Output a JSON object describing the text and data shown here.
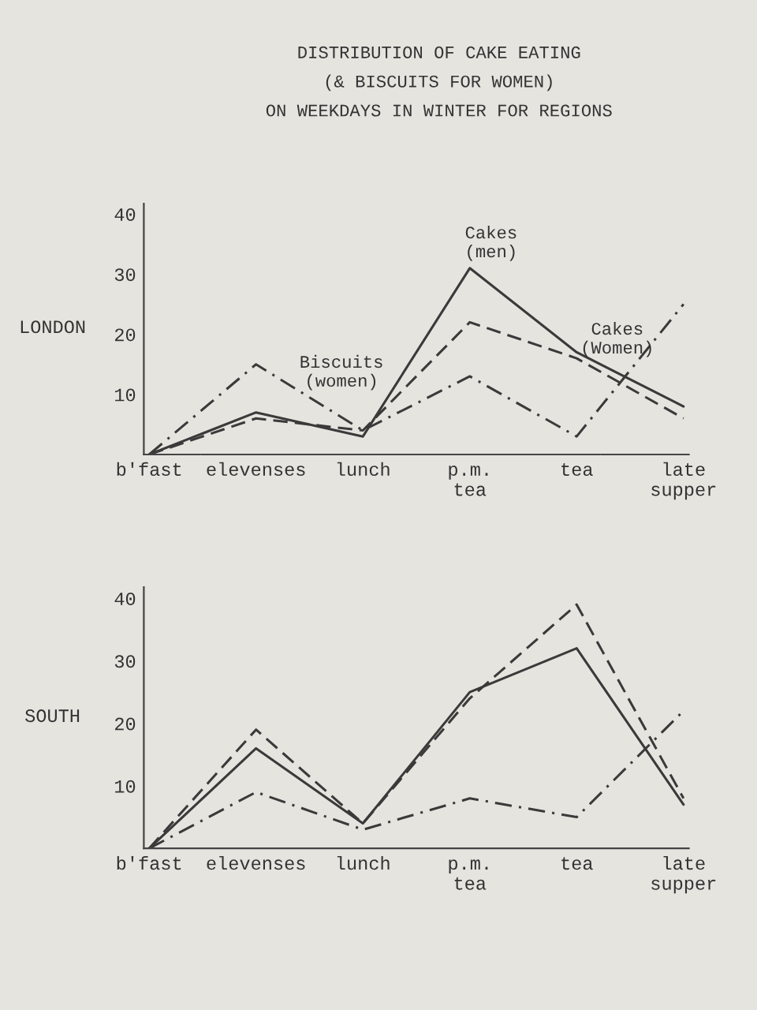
{
  "chart_data": [
    {
      "type": "line",
      "title": "DISTRIBUTION OF CAKE EATING\n(& BISCUITS FOR WOMEN)\nON WEEKDAYS IN WINTER FOR REGIONS",
      "ylabel": "LONDON",
      "categories": [
        "b'fast",
        "elevenses",
        "lunch",
        "p.m.\ntea",
        "tea",
        "late\nsupper"
      ],
      "ylim": [
        0,
        42
      ],
      "yticks": [
        10,
        20,
        30,
        40
      ],
      "grid": false,
      "legend": false,
      "marker": "none",
      "series": [
        {
          "name": "Cakes\n(men)",
          "color": "#3a3a3a",
          "line_style": "solid",
          "values": [
            0,
            7,
            3,
            31,
            17,
            8
          ]
        },
        {
          "name": "Cakes\n(Women)",
          "color": "#3a3a3a",
          "line_style": "dashed",
          "values": [
            0,
            6,
            4,
            22,
            16,
            6
          ]
        },
        {
          "name": "Biscuits\n(women)",
          "color": "#3a3a3a",
          "line_style": "dashdot",
          "values": [
            0,
            15,
            4,
            13,
            3,
            25
          ]
        }
      ]
    },
    {
      "type": "line",
      "ylabel": "SOUTH",
      "categories": [
        "b'fast",
        "elevenses",
        "lunch",
        "p.m.\ntea",
        "tea",
        "late\nsupper"
      ],
      "ylim": [
        0,
        42
      ],
      "yticks": [
        10,
        20,
        30,
        40
      ],
      "grid": false,
      "legend": false,
      "marker": "none",
      "series": [
        {
          "color": "#3a3a3a",
          "line_style": "solid",
          "values": [
            0,
            16,
            4,
            25,
            32,
            7
          ]
        },
        {
          "color": "#3a3a3a",
          "line_style": "dashed",
          "values": [
            0,
            19,
            4,
            24,
            39,
            8
          ]
        },
        {
          "color": "#3a3a3a",
          "line_style": "dashdot",
          "values": [
            0,
            9,
            3,
            8,
            5,
            22
          ]
        }
      ]
    }
  ]
}
